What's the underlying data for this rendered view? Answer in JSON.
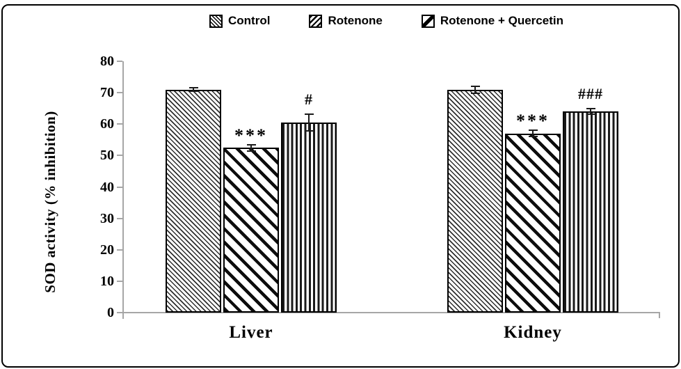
{
  "chart_data": {
    "type": "bar",
    "title": "",
    "ylabel": "SOD activity (% inhibition)",
    "xlabel": "",
    "categories": [
      "Liver",
      "Kidney"
    ],
    "series": [
      {
        "name": "Control",
        "values": [
          71.0,
          71.0
        ],
        "errors": [
          0.6,
          1.1
        ],
        "annotations": [
          "",
          ""
        ]
      },
      {
        "name": "Rotenone",
        "values": [
          52.5,
          57.0
        ],
        "errors": [
          1.0,
          1.0
        ],
        "annotations": [
          "***",
          "***"
        ]
      },
      {
        "name": "Rotenone + Quercetin",
        "values": [
          60.5,
          64.0
        ],
        "errors": [
          2.6,
          0.9
        ],
        "annotations": [
          "#",
          "###"
        ]
      }
    ],
    "ylim": [
      0,
      80
    ],
    "yticks": [
      0,
      10,
      20,
      30,
      40,
      50,
      60,
      70,
      80
    ],
    "grid": false,
    "legend_position": "top",
    "colors": {
      "axis": "#a6a6a6",
      "ink": "#000000",
      "background": "#ffffff"
    }
  }
}
